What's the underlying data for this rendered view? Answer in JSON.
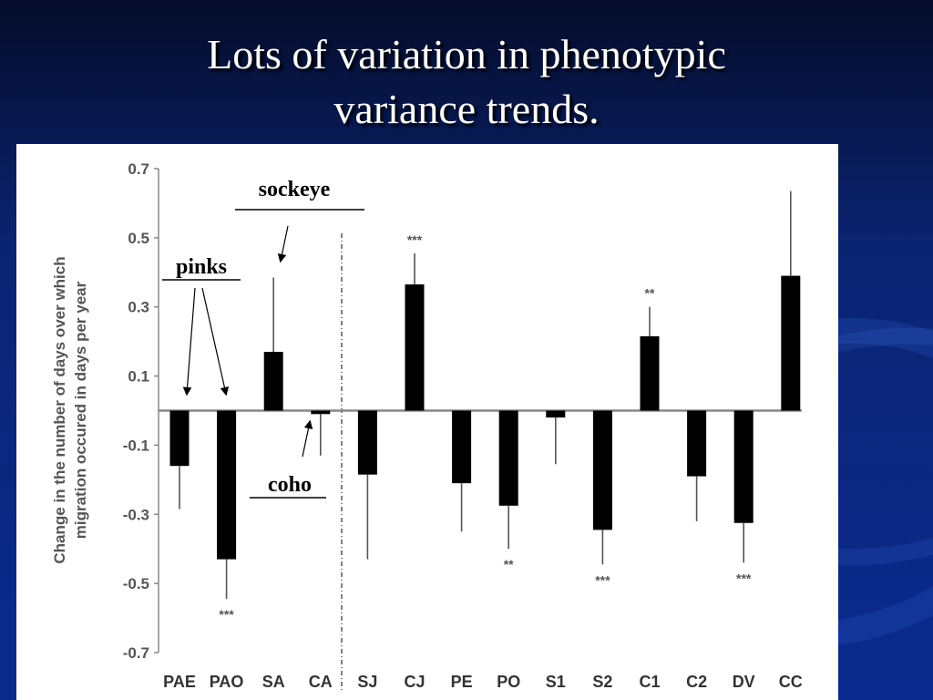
{
  "slide": {
    "title_line1": "Lots of variation in phenotypic",
    "title_line2": "variance trends."
  },
  "chart_data": {
    "type": "bar",
    "title": "",
    "xlabel": "",
    "ylabel_line1": "Change in the number of days over which",
    "ylabel_line2": "migration occured in days per year",
    "ylim": [
      -0.7,
      0.7
    ],
    "yticks": [
      "0.7",
      "0.5",
      "0.3",
      "0.1",
      "-0.1",
      "-0.3",
      "-0.5",
      "-0.7"
    ],
    "categories": [
      "PAE",
      "PAO",
      "SA",
      "CA",
      "SJ",
      "CJ",
      "PE",
      "PO",
      "S1",
      "S2",
      "C1",
      "C2",
      "DV",
      "CC"
    ],
    "values": [
      -0.16,
      -0.43,
      0.17,
      -0.01,
      -0.185,
      0.365,
      -0.21,
      -0.275,
      -0.02,
      -0.345,
      0.215,
      -0.19,
      -0.325,
      0.39
    ],
    "error": [
      0.125,
      0.115,
      0.215,
      0.12,
      0.245,
      0.09,
      0.14,
      0.125,
      0.135,
      0.1,
      0.085,
      0.13,
      0.115,
      0.245
    ],
    "significance": [
      "",
      "***",
      "",
      "",
      "",
      "***",
      "",
      "**",
      "",
      "***",
      "**",
      "",
      "***",
      ""
    ],
    "grid": false,
    "colors": {
      "bar": "#000000",
      "error": "#555555",
      "axis": "#888888"
    },
    "annotations": {
      "sockeye": "sockeye",
      "pinks": "pinks",
      "coho": "coho"
    }
  }
}
